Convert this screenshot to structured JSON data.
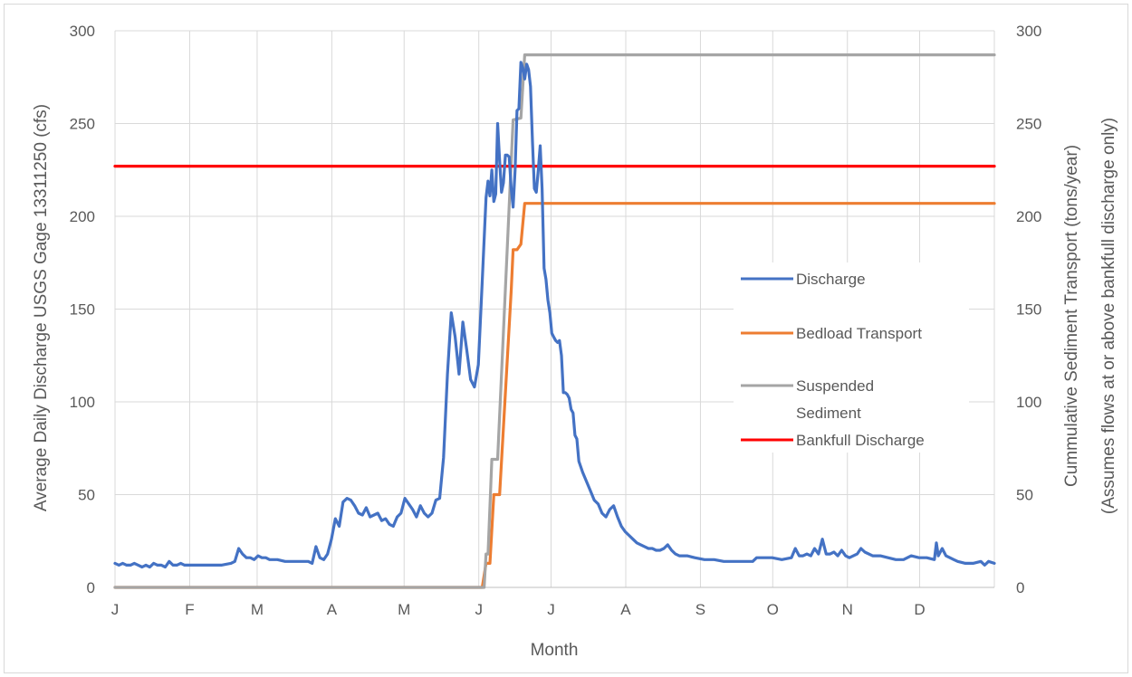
{
  "chart_data": {
    "type": "line",
    "xlabel": "Month",
    "ylabel_left": "Average Daily Discharge USGS Gage 13311250 (cfs)",
    "ylabel_right_line1": "Cummulative Sediment Transport (tons/year)",
    "ylabel_right_line2": "(Assumes flows at or above bankfull discharge only)",
    "x_ticks": [
      "J",
      "F",
      "M",
      "A",
      "M",
      "J",
      "J",
      "A",
      "S",
      "O",
      "N",
      "D"
    ],
    "x_range_days": [
      0,
      365
    ],
    "y_left_range": [
      0,
      300
    ],
    "y_right_range": [
      0,
      300
    ],
    "y_ticks_left": [
      "0",
      "50",
      "100",
      "150",
      "200",
      "250",
      "300"
    ],
    "y_ticks_right": [
      "0",
      "50",
      "100",
      "150",
      "200",
      "250",
      "300"
    ],
    "grid": true,
    "legend_position": "right-center",
    "series": [
      {
        "name": "Discharge",
        "color": "#4472c4",
        "axis": "left",
        "points": [
          [
            0,
            13
          ],
          [
            2,
            12
          ],
          [
            4,
            13
          ],
          [
            6,
            12
          ],
          [
            8,
            12
          ],
          [
            10,
            13
          ],
          [
            12,
            12
          ],
          [
            14,
            11
          ],
          [
            16,
            12
          ],
          [
            18,
            11
          ],
          [
            20,
            13
          ],
          [
            22,
            12
          ],
          [
            24,
            12
          ],
          [
            26,
            11
          ],
          [
            28,
            14
          ],
          [
            30,
            12
          ],
          [
            32,
            12
          ],
          [
            34,
            13
          ],
          [
            36,
            12
          ],
          [
            40,
            12
          ],
          [
            45,
            12
          ],
          [
            50,
            12
          ],
          [
            55,
            12
          ],
          [
            60,
            13
          ],
          [
            62,
            14
          ],
          [
            64,
            21
          ],
          [
            66,
            18
          ],
          [
            68,
            16
          ],
          [
            70,
            16
          ],
          [
            72,
            15
          ],
          [
            74,
            17
          ],
          [
            76,
            16
          ],
          [
            78,
            16
          ],
          [
            80,
            15
          ],
          [
            84,
            15
          ],
          [
            88,
            14
          ],
          [
            92,
            14
          ],
          [
            96,
            14
          ],
          [
            100,
            14
          ],
          [
            102,
            13
          ],
          [
            104,
            22
          ],
          [
            106,
            16
          ],
          [
            108,
            15
          ],
          [
            110,
            18
          ],
          [
            112,
            26
          ],
          [
            114,
            37
          ],
          [
            116,
            33
          ],
          [
            118,
            46
          ],
          [
            120,
            48
          ],
          [
            122,
            47
          ],
          [
            124,
            44
          ],
          [
            126,
            40
          ],
          [
            128,
            39
          ],
          [
            130,
            43
          ],
          [
            132,
            38
          ],
          [
            134,
            39
          ],
          [
            136,
            40
          ],
          [
            138,
            36
          ],
          [
            140,
            37
          ],
          [
            142,
            34
          ],
          [
            144,
            33
          ],
          [
            146,
            38
          ],
          [
            148,
            40
          ],
          [
            150,
            48
          ],
          [
            152,
            45
          ],
          [
            154,
            42
          ],
          [
            156,
            38
          ],
          [
            158,
            44
          ],
          [
            160,
            40
          ],
          [
            162,
            38
          ],
          [
            164,
            40
          ],
          [
            166,
            47
          ],
          [
            168,
            48
          ],
          [
            170,
            70
          ],
          [
            172,
            115
          ],
          [
            174,
            148
          ],
          [
            176,
            135
          ],
          [
            178,
            115
          ],
          [
            180,
            143
          ],
          [
            182,
            128
          ],
          [
            184,
            112
          ],
          [
            186,
            108
          ],
          [
            188,
            120
          ],
          [
            190,
            165
          ],
          [
            192,
            210
          ],
          [
            193,
            219
          ],
          [
            194,
            211
          ],
          [
            195,
            225
          ],
          [
            196,
            208
          ],
          [
            197,
            212
          ],
          [
            198,
            250
          ],
          [
            199,
            230
          ],
          [
            200,
            213
          ],
          [
            201,
            218
          ],
          [
            202,
            233
          ],
          [
            203,
            233
          ],
          [
            204,
            232
          ],
          [
            205,
            215
          ],
          [
            206,
            205
          ],
          [
            207,
            225
          ],
          [
            208,
            257
          ],
          [
            209,
            258
          ],
          [
            210,
            283
          ],
          [
            211,
            280
          ],
          [
            212,
            274
          ],
          [
            213,
            282
          ],
          [
            214,
            279
          ],
          [
            215,
            270
          ],
          [
            216,
            240
          ],
          [
            217,
            215
          ],
          [
            218,
            213
          ],
          [
            219,
            225
          ],
          [
            220,
            238
          ],
          [
            221,
            215
          ],
          [
            222,
            172
          ],
          [
            223,
            166
          ],
          [
            224,
            155
          ],
          [
            225,
            148
          ],
          [
            226,
            137
          ],
          [
            227,
            135
          ],
          [
            228,
            133
          ],
          [
            229,
            132
          ],
          [
            230,
            133
          ],
          [
            231,
            125
          ],
          [
            232,
            105
          ],
          [
            233,
            105
          ],
          [
            234,
            104
          ],
          [
            235,
            102
          ],
          [
            236,
            96
          ],
          [
            237,
            94
          ],
          [
            238,
            82
          ],
          [
            239,
            80
          ],
          [
            240,
            68
          ],
          [
            242,
            62
          ],
          [
            244,
            57
          ],
          [
            246,
            52
          ],
          [
            248,
            47
          ],
          [
            250,
            45
          ],
          [
            252,
            40
          ],
          [
            254,
            38
          ],
          [
            256,
            42
          ],
          [
            258,
            44
          ],
          [
            260,
            38
          ],
          [
            262,
            33
          ],
          [
            264,
            30
          ],
          [
            266,
            28
          ],
          [
            268,
            26
          ],
          [
            270,
            24
          ],
          [
            272,
            23
          ],
          [
            274,
            22
          ],
          [
            276,
            21
          ],
          [
            278,
            21
          ],
          [
            280,
            20
          ],
          [
            282,
            20
          ],
          [
            284,
            21
          ],
          [
            286,
            23
          ],
          [
            288,
            20
          ],
          [
            290,
            18
          ],
          [
            292,
            17
          ],
          [
            296,
            17
          ],
          [
            300,
            16
          ],
          [
            305,
            15
          ],
          [
            310,
            15
          ],
          [
            315,
            14
          ],
          [
            320,
            14
          ],
          [
            325,
            14
          ],
          [
            330,
            14
          ],
          [
            332,
            16
          ],
          [
            334,
            16
          ],
          [
            340,
            16
          ],
          [
            345,
            15
          ],
          [
            350,
            16
          ],
          [
            352,
            21
          ],
          [
            354,
            17
          ],
          [
            356,
            17
          ],
          [
            358,
            18
          ],
          [
            360,
            17
          ],
          [
            362,
            21
          ],
          [
            364,
            18
          ],
          [
            366,
            26
          ],
          [
            368,
            18
          ],
          [
            370,
            18
          ],
          [
            372,
            19
          ],
          [
            374,
            17
          ],
          [
            376,
            20
          ],
          [
            378,
            17
          ],
          [
            380,
            16
          ],
          [
            384,
            18
          ],
          [
            386,
            21
          ],
          [
            388,
            19
          ],
          [
            392,
            17
          ],
          [
            396,
            17
          ],
          [
            400,
            16
          ],
          [
            404,
            15
          ],
          [
            408,
            15
          ],
          [
            412,
            17
          ],
          [
            416,
            16
          ],
          [
            420,
            16
          ],
          [
            424,
            15
          ],
          [
            425,
            24
          ],
          [
            426,
            17
          ],
          [
            428,
            21
          ],
          [
            430,
            17
          ],
          [
            432,
            16
          ],
          [
            434,
            15
          ],
          [
            436,
            14
          ],
          [
            440,
            13
          ],
          [
            444,
            13
          ],
          [
            448,
            14
          ],
          [
            450,
            12
          ],
          [
            452,
            14
          ],
          [
            455,
            13
          ]
        ]
      },
      {
        "name": "Bedload Transport",
        "color": "#ed7d31",
        "axis": "right",
        "points": [
          [
            0,
            0
          ],
          [
            190,
            0
          ],
          [
            192,
            13
          ],
          [
            194,
            13
          ],
          [
            196,
            50
          ],
          [
            199,
            50
          ],
          [
            205,
            160
          ],
          [
            206,
            182
          ],
          [
            208,
            182
          ],
          [
            210,
            185
          ],
          [
            212,
            207
          ],
          [
            455,
            207
          ]
        ]
      },
      {
        "name": "Suspended Sediment",
        "color": "#a5a5a5",
        "axis": "right",
        "points": [
          [
            0,
            0
          ],
          [
            191,
            0
          ],
          [
            192,
            18
          ],
          [
            193,
            18
          ],
          [
            195,
            69
          ],
          [
            198,
            69
          ],
          [
            206,
            252
          ],
          [
            210,
            253
          ],
          [
            212,
            287
          ],
          [
            455,
            287
          ]
        ]
      },
      {
        "name": "Bankfull Discharge",
        "color": "#ff0000",
        "axis": "left",
        "points": [
          [
            0,
            227
          ],
          [
            455,
            227
          ]
        ]
      }
    ],
    "legend_labels": [
      "Discharge",
      "Bedload Transport",
      "Suspended",
      "Sediment",
      "Bankfull Discharge"
    ]
  }
}
